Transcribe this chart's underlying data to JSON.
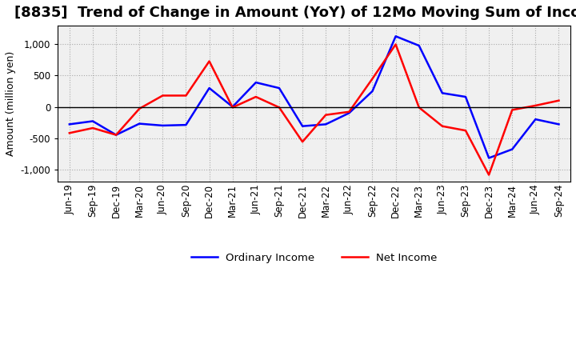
{
  "title": "[8835]  Trend of Change in Amount (YoY) of 12Mo Moving Sum of Incomes",
  "ylabel": "Amount (million yen)",
  "x_labels": [
    "Jun-19",
    "Sep-19",
    "Dec-19",
    "Mar-20",
    "Jun-20",
    "Sep-20",
    "Dec-20",
    "Mar-21",
    "Jun-21",
    "Sep-21",
    "Dec-21",
    "Mar-22",
    "Jun-22",
    "Sep-22",
    "Dec-22",
    "Mar-23",
    "Jun-23",
    "Sep-23",
    "Dec-23",
    "Mar-24",
    "Jun-24",
    "Sep-24"
  ],
  "ordinary_income": [
    -280,
    -230,
    -450,
    -270,
    -300,
    -290,
    300,
    0,
    390,
    300,
    -310,
    -280,
    -100,
    250,
    1130,
    980,
    220,
    160,
    -820,
    -680,
    -200,
    -280
  ],
  "net_income": [
    -420,
    -340,
    -450,
    -30,
    180,
    180,
    730,
    -10,
    160,
    -10,
    -560,
    -130,
    -80,
    450,
    1000,
    -10,
    -310,
    -380,
    -1090,
    -50,
    20,
    100
  ],
  "ordinary_color": "#0000ff",
  "net_color": "#ff0000",
  "background_color": "#ffffff",
  "plot_bg_color": "#f0f0f0",
  "grid_color": "#aaaaaa",
  "ylim": [
    -1200,
    1300
  ],
  "yticks": [
    -1000,
    -500,
    0,
    500,
    1000
  ],
  "legend_labels": [
    "Ordinary Income",
    "Net Income"
  ],
  "linewidth": 1.8,
  "title_fontsize": 13,
  "axis_fontsize": 9,
  "tick_fontsize": 8.5
}
